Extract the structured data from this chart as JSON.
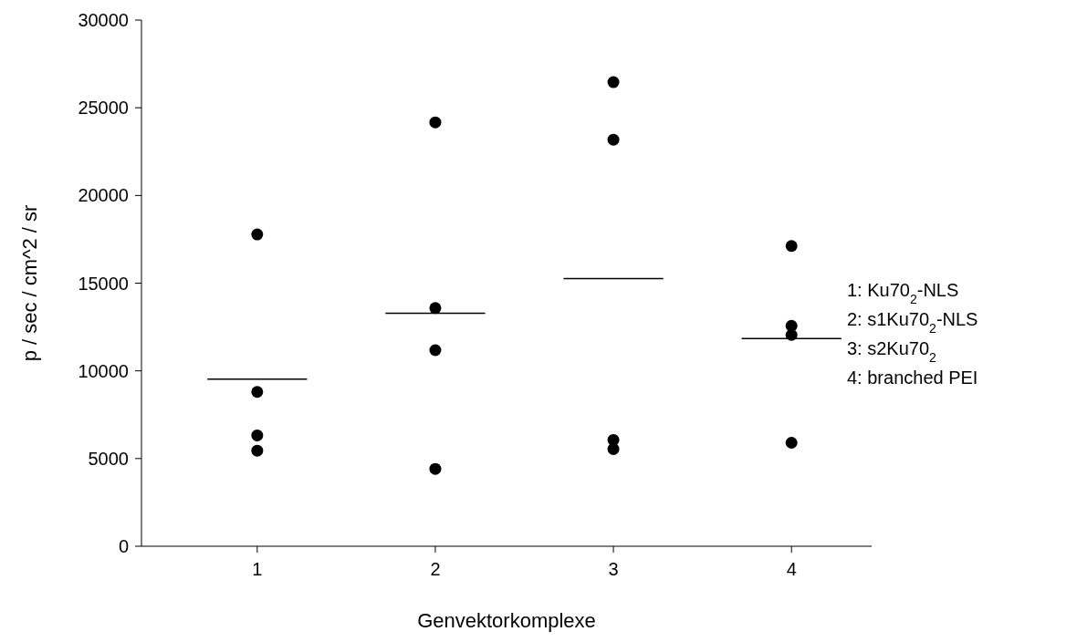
{
  "chart_data": {
    "type": "scatter",
    "xlabel": "Genvektorkomplexe",
    "ylabel": "p / sec / cm^2 / sr",
    "xlim": [
      0.35,
      4.45
    ],
    "xticks": [
      1,
      2,
      3,
      4
    ],
    "ylim": [
      0,
      30000
    ],
    "yticks": [
      0,
      5000,
      10000,
      15000,
      20000,
      25000,
      30000
    ],
    "grid": false,
    "marker": "circle",
    "series": [
      {
        "color": "#000000",
        "x": [
          1,
          1,
          1,
          1,
          2,
          2,
          2,
          2,
          3,
          3,
          3,
          3,
          4,
          4,
          4,
          4
        ],
        "values": [
          17780,
          8800,
          6320,
          5450,
          24170,
          13580,
          11180,
          4410,
          26460,
          23180,
          6060,
          5540,
          17120,
          12570,
          12050,
          5900
        ]
      },
      {
        "type": "line",
        "color": "#000000",
        "marker": "none",
        "x": [
          0.72,
          1.28,
          1.5,
          1.72,
          2.28,
          2.5,
          2.72,
          3.28,
          3.5,
          3.72,
          4.28
        ],
        "values": [
          9530,
          9530,
          null,
          13280,
          13280,
          null,
          15260,
          15260,
          null,
          11840,
          11840
        ]
      }
    ],
    "annotations": [
      "1: Ku70$_{2}$-NLS",
      "2: s1Ku70$_{2}$-NLS",
      "3: s2Ku70$_{2}$",
      "4: branched PEI"
    ]
  }
}
